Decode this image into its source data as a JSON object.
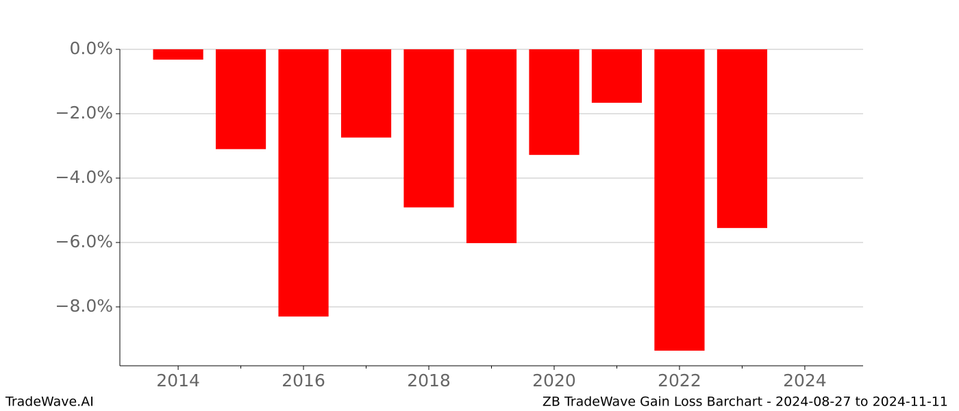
{
  "chart_data": {
    "type": "bar",
    "x": [
      2014,
      2015,
      2016,
      2017,
      2018,
      2019,
      2020,
      2021,
      2022,
      2023
    ],
    "values": [
      -0.32,
      -3.1,
      -8.3,
      -2.74,
      -4.91,
      -6.02,
      -3.28,
      -1.66,
      -9.36,
      -5.55
    ],
    "color": "#ff0000",
    "xlim": [
      2013.07,
      2024.93
    ],
    "xticks": [
      2014,
      2016,
      2018,
      2020,
      2022,
      2024
    ],
    "xminor_ticks": [
      2015,
      2017,
      2019,
      2021,
      2023
    ],
    "ylim": [
      -9.83,
      0
    ],
    "yticks": [
      {
        "value": 0,
        "label": "0.0%"
      },
      {
        "value": -2,
        "label": "−2.0%"
      },
      {
        "value": -4,
        "label": "−4.0%"
      },
      {
        "value": -6,
        "label": "−6.0%"
      },
      {
        "value": -8,
        "label": "−8.0%"
      }
    ],
    "grid": true
  },
  "footer": {
    "left": "TradeWave.AI",
    "right": "ZB TradeWave Gain Loss Barchart - 2024-08-27 to 2024-11-11"
  }
}
